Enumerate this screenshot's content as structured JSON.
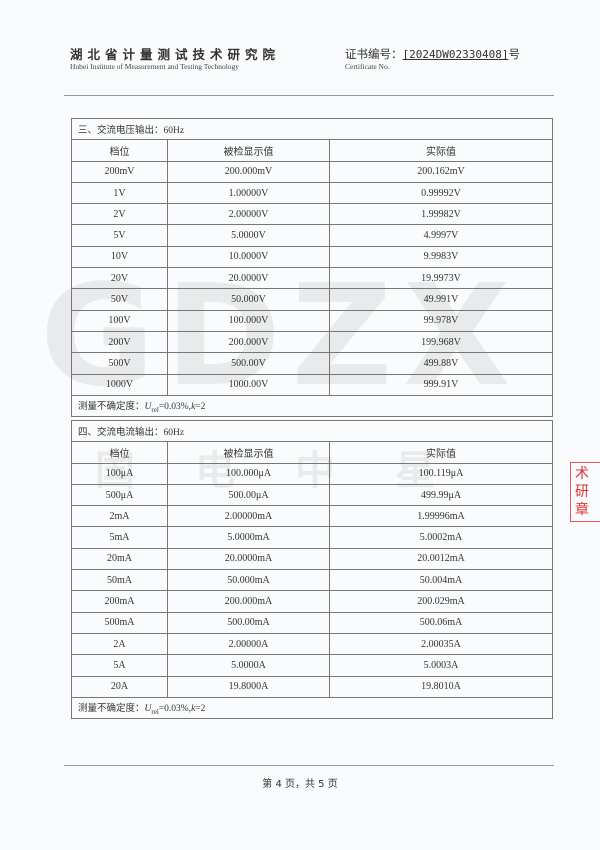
{
  "header": {
    "org_cn": "湖北省计量测试技术研究院",
    "org_en": "Hubei Institute of Measurement and Testing Technology",
    "cert_label": "证书编号：",
    "cert_number": "[2024DW02330408]",
    "cert_suffix": "号",
    "cert_en": "Certificate No."
  },
  "watermark": {
    "logo": "GDZX",
    "text": "国电中星"
  },
  "stamp": {
    "line1": "术研",
    "line2": "章"
  },
  "columns": [
    "档位",
    "被检显示值",
    "实际值"
  ],
  "section_voltage": {
    "title": "三、交流电压输出：",
    "freq": "60Hz",
    "rows": [
      [
        "200mV",
        "200.000mV",
        "200.162mV"
      ],
      [
        "1V",
        "1.00000V",
        "0.99992V"
      ],
      [
        "2V",
        "2.00000V",
        "1.99982V"
      ],
      [
        "5V",
        "5.0000V",
        "4.9997V"
      ],
      [
        "10V",
        "10.0000V",
        "9.9983V"
      ],
      [
        "20V",
        "20.0000V",
        "19.9973V"
      ],
      [
        "50V",
        "50.000V",
        "49.991V"
      ],
      [
        "100V",
        "100.000V",
        "99.978V"
      ],
      [
        "200V",
        "200.000V",
        "199.968V"
      ],
      [
        "500V",
        "500.00V",
        "499.88V"
      ],
      [
        "1000V",
        "1000.00V",
        "999.91V"
      ]
    ],
    "uncertainty_label": "测量不确定度：",
    "uncertainty_value": "=0.03%,",
    "k_value": "=2"
  },
  "section_current": {
    "title": "四、交流电流输出：",
    "freq": "60Hz",
    "rows": [
      [
        "100μA",
        "100.000μA",
        "100.119μA"
      ],
      [
        "500μA",
        "500.00μA",
        "499.99μA"
      ],
      [
        "2mA",
        "2.00000mA",
        "1.99996mA"
      ],
      [
        "5mA",
        "5.0000mA",
        "5.0002mA"
      ],
      [
        "20mA",
        "20.0000mA",
        "20.0012mA"
      ],
      [
        "50mA",
        "50.000mA",
        "50.004mA"
      ],
      [
        "200mA",
        "200.000mA",
        "200.029mA"
      ],
      [
        "500mA",
        "500.00mA",
        "500.06mA"
      ],
      [
        "2A",
        "2.00000A",
        "2.00035A"
      ],
      [
        "5A",
        "5.0000A",
        "5.0003A"
      ],
      [
        "20A",
        "19.8000A",
        "19.8010A"
      ]
    ],
    "uncertainty_label": "测量不确定度：",
    "uncertainty_value": "=0.03%,",
    "k_value": "=2"
  },
  "footer": {
    "page_text": "第 4 页，共 5 页"
  }
}
